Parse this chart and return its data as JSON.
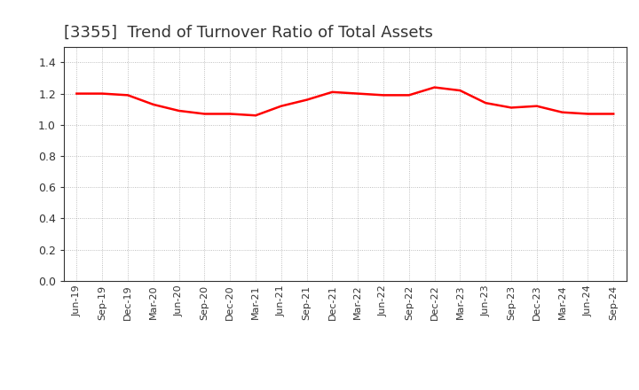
{
  "title": "[3355]  Trend of Turnover Ratio of Total Assets",
  "title_fontsize": 13,
  "title_color": "#333333",
  "line_color": "#FF0000",
  "line_width": 1.8,
  "background_color": "#FFFFFF",
  "plot_bg_color": "#FFFFFF",
  "grid_color": "#999999",
  "ylim": [
    0.0,
    1.5
  ],
  "yticks": [
    0.0,
    0.2,
    0.4,
    0.6,
    0.8,
    1.0,
    1.2,
    1.4
  ],
  "labels": [
    "Jun-19",
    "Sep-19",
    "Dec-19",
    "Mar-20",
    "Jun-20",
    "Sep-20",
    "Dec-20",
    "Mar-21",
    "Jun-21",
    "Sep-21",
    "Dec-21",
    "Mar-22",
    "Jun-22",
    "Sep-22",
    "Dec-22",
    "Mar-23",
    "Jun-23",
    "Sep-23",
    "Dec-23",
    "Mar-24",
    "Jun-24",
    "Sep-24"
  ],
  "values": [
    1.2,
    1.2,
    1.19,
    1.13,
    1.09,
    1.07,
    1.07,
    1.06,
    1.12,
    1.16,
    1.21,
    1.2,
    1.19,
    1.19,
    1.24,
    1.22,
    1.14,
    1.11,
    1.12,
    1.08,
    1.07,
    1.07
  ]
}
